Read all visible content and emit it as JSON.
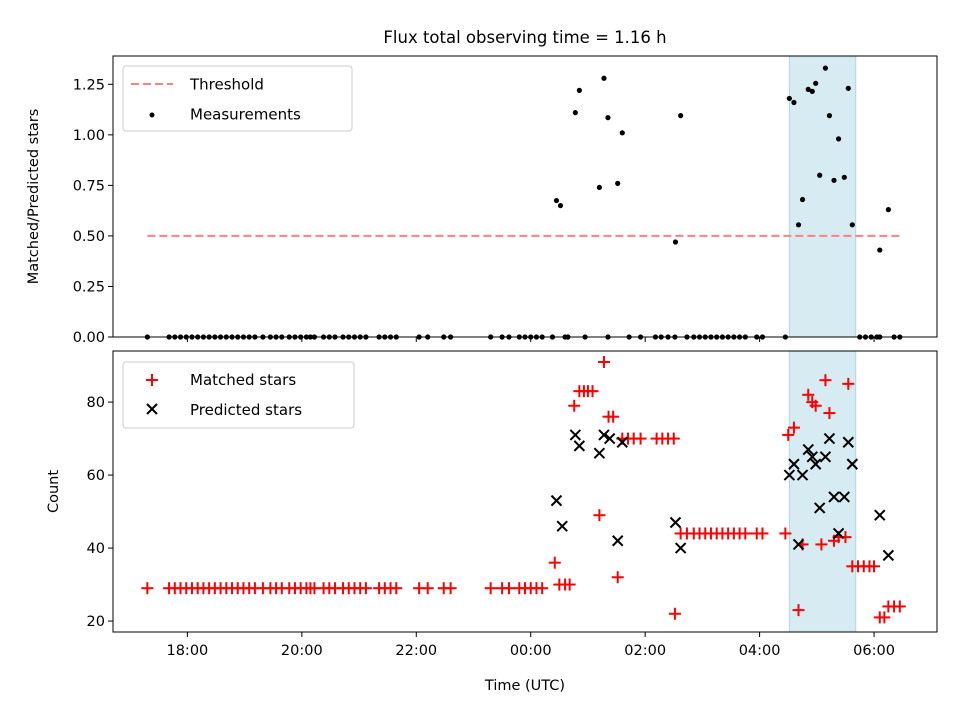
{
  "chart_data": {
    "title": "Flux total observing time = 1.16 h",
    "x_label": "Time (UTC)",
    "x_range_hours": [
      16.7,
      31.1
    ],
    "x_ticks": [
      {
        "h": 18,
        "label": "18:00"
      },
      {
        "h": 20,
        "label": "20:00"
      },
      {
        "h": 22,
        "label": "22:00"
      },
      {
        "h": 24,
        "label": "00:00"
      },
      {
        "h": 26,
        "label": "02:00"
      },
      {
        "h": 28,
        "label": "04:00"
      },
      {
        "h": 30,
        "label": "06:00"
      }
    ],
    "highlight_span_hours": [
      28.52,
      29.68
    ],
    "top": {
      "type": "scatter",
      "ylabel": "Matched/Predicted stars",
      "ylim": [
        0,
        1.39
      ],
      "yticks": [
        {
          "v": 0,
          "label": "0.00"
        },
        {
          "v": 0.25,
          "label": "0.25"
        },
        {
          "v": 0.5,
          "label": "0.50"
        },
        {
          "v": 0.75,
          "label": "0.75"
        },
        {
          "v": 1.0,
          "label": "1.00"
        },
        {
          "v": 1.25,
          "label": "1.25"
        }
      ],
      "threshold": {
        "value": 0.5,
        "x_start": 17.3,
        "x_end": 30.45,
        "color": "#ff7f7f"
      },
      "legend": {
        "threshold": "Threshold",
        "measurements": "Measurements"
      },
      "measurements": [
        [
          17.3,
          0
        ],
        [
          17.68,
          0
        ],
        [
          17.78,
          0
        ],
        [
          17.88,
          0
        ],
        [
          17.98,
          0
        ],
        [
          18.08,
          0
        ],
        [
          18.18,
          0
        ],
        [
          18.28,
          0
        ],
        [
          18.38,
          0
        ],
        [
          18.48,
          0
        ],
        [
          18.58,
          0
        ],
        [
          18.68,
          0
        ],
        [
          18.78,
          0
        ],
        [
          18.88,
          0
        ],
        [
          18.98,
          0
        ],
        [
          19.08,
          0
        ],
        [
          19.18,
          0
        ],
        [
          19.32,
          0
        ],
        [
          19.45,
          0
        ],
        [
          19.55,
          0
        ],
        [
          19.65,
          0
        ],
        [
          19.78,
          0
        ],
        [
          19.88,
          0
        ],
        [
          19.98,
          0
        ],
        [
          20.08,
          0
        ],
        [
          20.15,
          0
        ],
        [
          20.22,
          0
        ],
        [
          20.38,
          0
        ],
        [
          20.48,
          0
        ],
        [
          20.58,
          0
        ],
        [
          20.72,
          0
        ],
        [
          20.82,
          0
        ],
        [
          20.92,
          0
        ],
        [
          21.02,
          0
        ],
        [
          21.12,
          0
        ],
        [
          21.35,
          0
        ],
        [
          21.45,
          0
        ],
        [
          21.55,
          0
        ],
        [
          21.65,
          0
        ],
        [
          22.05,
          0
        ],
        [
          22.2,
          0
        ],
        [
          22.48,
          0
        ],
        [
          22.6,
          0
        ],
        [
          23.3,
          0
        ],
        [
          23.5,
          0
        ],
        [
          23.62,
          0
        ],
        [
          23.8,
          0
        ],
        [
          23.9,
          0
        ],
        [
          24.0,
          0
        ],
        [
          24.1,
          0
        ],
        [
          24.2,
          0
        ],
        [
          24.38,
          0
        ],
        [
          24.6,
          0
        ],
        [
          24.65,
          0
        ],
        [
          24.95,
          0
        ],
        [
          25.35,
          0
        ],
        [
          25.72,
          0
        ],
        [
          25.92,
          0
        ],
        [
          26.18,
          0
        ],
        [
          26.28,
          0
        ],
        [
          26.4,
          0
        ],
        [
          26.52,
          0
        ],
        [
          26.73,
          0
        ],
        [
          26.85,
          0
        ],
        [
          26.95,
          0
        ],
        [
          27.05,
          0
        ],
        [
          27.15,
          0
        ],
        [
          27.25,
          0
        ],
        [
          27.35,
          0
        ],
        [
          27.45,
          0
        ],
        [
          27.55,
          0
        ],
        [
          27.65,
          0
        ],
        [
          27.75,
          0
        ],
        [
          27.95,
          0
        ],
        [
          28.05,
          0
        ],
        [
          28.45,
          0
        ],
        [
          29.75,
          0
        ],
        [
          29.85,
          0
        ],
        [
          29.95,
          0
        ],
        [
          30.05,
          0
        ],
        [
          30.1,
          0
        ],
        [
          30.35,
          0
        ],
        [
          30.45,
          0
        ],
        [
          24.45,
          0.675
        ],
        [
          24.52,
          0.65
        ],
        [
          24.78,
          1.11
        ],
        [
          24.85,
          1.22
        ],
        [
          25.2,
          0.74
        ],
        [
          25.28,
          1.28
        ],
        [
          25.35,
          1.085
        ],
        [
          25.52,
          0.76
        ],
        [
          25.6,
          1.01
        ],
        [
          26.53,
          0.47
        ],
        [
          26.62,
          1.095
        ],
        [
          28.52,
          1.18
        ],
        [
          28.6,
          1.16
        ],
        [
          28.68,
          0.555
        ],
        [
          28.75,
          0.68
        ],
        [
          28.85,
          1.225
        ],
        [
          28.92,
          1.215
        ],
        [
          28.98,
          1.255
        ],
        [
          29.05,
          0.8
        ],
        [
          29.15,
          1.33
        ],
        [
          29.22,
          1.095
        ],
        [
          29.3,
          0.775
        ],
        [
          29.38,
          0.98
        ],
        [
          29.48,
          0.79
        ],
        [
          29.55,
          1.23
        ],
        [
          29.62,
          0.555
        ],
        [
          30.1,
          0.43
        ],
        [
          30.25,
          0.63
        ]
      ]
    },
    "bottom": {
      "type": "scatter",
      "ylabel": "Count",
      "ylim": [
        17,
        94
      ],
      "yticks": [
        {
          "v": 20,
          "label": "20"
        },
        {
          "v": 40,
          "label": "40"
        },
        {
          "v": 60,
          "label": "60"
        },
        {
          "v": 80,
          "label": "80"
        }
      ],
      "legend": {
        "matched": "Matched stars",
        "predicted": "Predicted stars"
      },
      "matched_color": "#ff0000",
      "predicted_color": "#000000",
      "matched": [
        [
          17.3,
          29
        ],
        [
          17.68,
          29
        ],
        [
          17.78,
          29
        ],
        [
          17.88,
          29
        ],
        [
          17.98,
          29
        ],
        [
          18.08,
          29
        ],
        [
          18.18,
          29
        ],
        [
          18.28,
          29
        ],
        [
          18.38,
          29
        ],
        [
          18.48,
          29
        ],
        [
          18.58,
          29
        ],
        [
          18.68,
          29
        ],
        [
          18.78,
          29
        ],
        [
          18.88,
          29
        ],
        [
          18.98,
          29
        ],
        [
          19.08,
          29
        ],
        [
          19.18,
          29
        ],
        [
          19.32,
          29
        ],
        [
          19.45,
          29
        ],
        [
          19.55,
          29
        ],
        [
          19.65,
          29
        ],
        [
          19.78,
          29
        ],
        [
          19.88,
          29
        ],
        [
          19.98,
          29
        ],
        [
          20.08,
          29
        ],
        [
          20.15,
          29
        ],
        [
          20.22,
          29
        ],
        [
          20.38,
          29
        ],
        [
          20.48,
          29
        ],
        [
          20.58,
          29
        ],
        [
          20.72,
          29
        ],
        [
          20.82,
          29
        ],
        [
          20.92,
          29
        ],
        [
          21.02,
          29
        ],
        [
          21.12,
          29
        ],
        [
          21.35,
          29
        ],
        [
          21.45,
          29
        ],
        [
          21.55,
          29
        ],
        [
          21.65,
          29
        ],
        [
          22.05,
          29
        ],
        [
          22.2,
          29
        ],
        [
          22.48,
          29
        ],
        [
          22.6,
          29
        ],
        [
          23.3,
          29
        ],
        [
          23.5,
          29
        ],
        [
          23.62,
          29
        ],
        [
          23.8,
          29
        ],
        [
          23.9,
          29
        ],
        [
          24.0,
          29
        ],
        [
          24.1,
          29
        ],
        [
          24.2,
          29
        ],
        [
          24.42,
          36
        ],
        [
          24.5,
          30
        ],
        [
          24.6,
          30
        ],
        [
          24.68,
          30
        ],
        [
          24.76,
          79
        ],
        [
          24.85,
          83
        ],
        [
          24.93,
          83
        ],
        [
          25.0,
          83
        ],
        [
          25.08,
          83
        ],
        [
          25.2,
          49
        ],
        [
          25.28,
          91
        ],
        [
          25.36,
          76
        ],
        [
          25.44,
          76
        ],
        [
          25.52,
          32
        ],
        [
          25.6,
          70
        ],
        [
          25.7,
          70
        ],
        [
          25.8,
          70
        ],
        [
          25.92,
          70
        ],
        [
          26.2,
          70
        ],
        [
          26.3,
          70
        ],
        [
          26.4,
          70
        ],
        [
          26.5,
          70
        ],
        [
          26.52,
          22
        ],
        [
          26.62,
          44
        ],
        [
          26.73,
          44
        ],
        [
          26.85,
          44
        ],
        [
          26.95,
          44
        ],
        [
          27.05,
          44
        ],
        [
          27.15,
          44
        ],
        [
          27.25,
          44
        ],
        [
          27.35,
          44
        ],
        [
          27.45,
          44
        ],
        [
          27.55,
          44
        ],
        [
          27.65,
          44
        ],
        [
          27.75,
          44
        ],
        [
          27.95,
          44
        ],
        [
          28.05,
          44
        ],
        [
          28.45,
          44
        ],
        [
          28.5,
          71
        ],
        [
          28.6,
          73
        ],
        [
          28.68,
          23
        ],
        [
          28.75,
          41
        ],
        [
          28.85,
          82
        ],
        [
          28.92,
          80
        ],
        [
          28.98,
          79
        ],
        [
          29.08,
          41
        ],
        [
          29.15,
          86
        ],
        [
          29.22,
          77
        ],
        [
          29.3,
          42
        ],
        [
          29.38,
          43
        ],
        [
          29.5,
          43
        ],
        [
          29.55,
          85
        ],
        [
          29.62,
          35
        ],
        [
          29.72,
          35
        ],
        [
          29.82,
          35
        ],
        [
          29.92,
          35
        ],
        [
          30.0,
          35
        ],
        [
          30.1,
          21
        ],
        [
          30.18,
          21
        ],
        [
          30.25,
          24
        ],
        [
          30.35,
          24
        ],
        [
          30.45,
          24
        ]
      ],
      "predicted": [
        [
          24.45,
          53
        ],
        [
          24.55,
          46
        ],
        [
          24.78,
          71
        ],
        [
          24.85,
          68
        ],
        [
          25.2,
          66
        ],
        [
          25.28,
          71
        ],
        [
          25.38,
          70
        ],
        [
          25.52,
          42
        ],
        [
          25.6,
          69
        ],
        [
          26.53,
          47
        ],
        [
          26.62,
          40
        ],
        [
          28.52,
          60
        ],
        [
          28.6,
          63
        ],
        [
          28.68,
          41
        ],
        [
          28.75,
          60
        ],
        [
          28.85,
          67
        ],
        [
          28.92,
          65
        ],
        [
          28.98,
          63
        ],
        [
          29.05,
          51
        ],
        [
          29.15,
          65
        ],
        [
          29.22,
          70
        ],
        [
          29.3,
          54
        ],
        [
          29.38,
          44
        ],
        [
          29.48,
          54
        ],
        [
          29.55,
          69
        ],
        [
          29.62,
          63
        ],
        [
          30.1,
          49
        ],
        [
          30.25,
          38
        ]
      ]
    }
  }
}
